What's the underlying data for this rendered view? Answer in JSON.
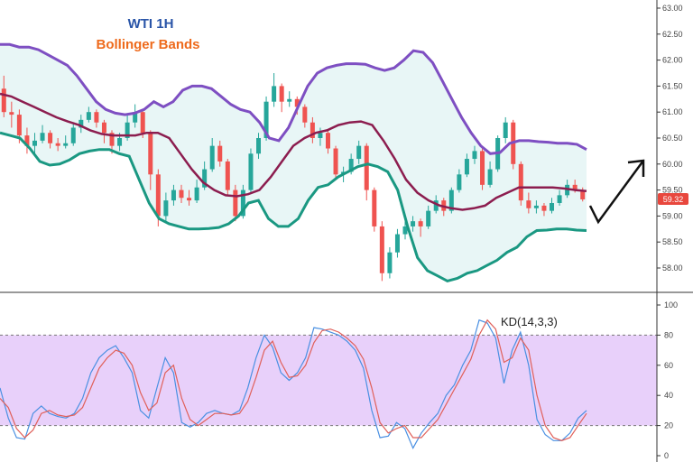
{
  "chart_data": [
    {
      "type": "candlestick",
      "title": "WTI 1H",
      "subtitle": "Bollinger Bands",
      "ylim": [
        57.6,
        63.1
      ],
      "yticks": [
        "63.00",
        "62.50",
        "62.00",
        "61.50",
        "61.00",
        "60.50",
        "60.00",
        "59.50",
        "59.00",
        "58.50",
        "58.00"
      ],
      "ytick_values": [
        63.0,
        62.5,
        62.0,
        61.5,
        61.0,
        60.5,
        60.0,
        59.5,
        59.0,
        58.5,
        58.0
      ],
      "last_price": "59.32",
      "last_price_value": 59.32,
      "candles": [
        [
          61.45,
          61.0,
          61.7,
          60.9
        ],
        [
          61.0,
          60.95,
          61.2,
          60.7
        ],
        [
          60.95,
          60.55,
          61.05,
          60.4
        ],
        [
          60.55,
          60.35,
          60.7,
          60.2
        ],
        [
          60.35,
          60.45,
          60.6,
          60.2
        ],
        [
          60.45,
          60.6,
          60.75,
          60.4
        ],
        [
          60.6,
          60.4,
          60.65,
          60.3
        ],
        [
          60.4,
          60.35,
          60.5,
          60.25
        ],
        [
          60.35,
          60.4,
          60.55,
          60.3
        ],
        [
          60.4,
          60.7,
          60.8,
          60.35
        ],
        [
          60.7,
          60.85,
          60.95,
          60.6
        ],
        [
          60.85,
          61.0,
          61.1,
          60.8
        ],
        [
          61.0,
          60.8,
          61.05,
          60.7
        ],
        [
          60.8,
          60.6,
          60.85,
          60.4
        ],
        [
          60.6,
          60.35,
          60.65,
          60.2
        ],
        [
          60.35,
          60.5,
          60.6,
          60.25
        ],
        [
          60.5,
          60.8,
          60.95,
          60.45
        ],
        [
          60.8,
          61.0,
          61.15,
          60.7
        ],
        [
          61.0,
          60.6,
          61.05,
          60.5
        ],
        [
          60.6,
          59.8,
          60.65,
          59.5
        ],
        [
          59.8,
          59.0,
          59.9,
          58.8
        ],
        [
          59.0,
          59.3,
          59.45,
          58.9
        ],
        [
          59.3,
          59.5,
          59.6,
          59.2
        ],
        [
          59.5,
          59.35,
          59.6,
          59.25
        ],
        [
          59.35,
          59.3,
          59.5,
          59.2
        ],
        [
          59.3,
          59.55,
          59.7,
          59.25
        ],
        [
          59.55,
          59.9,
          60.05,
          59.5
        ],
        [
          59.9,
          60.35,
          60.5,
          59.85
        ],
        [
          60.35,
          60.05,
          60.45,
          59.95
        ],
        [
          60.05,
          59.5,
          60.1,
          59.4
        ],
        [
          59.5,
          59.0,
          59.6,
          58.9
        ],
        [
          59.0,
          59.5,
          59.6,
          58.95
        ],
        [
          59.5,
          60.2,
          60.3,
          59.45
        ],
        [
          60.2,
          60.5,
          60.6,
          60.1
        ],
        [
          60.5,
          61.2,
          61.3,
          60.45
        ],
        [
          61.2,
          61.5,
          61.75,
          61.1
        ],
        [
          61.5,
          61.2,
          61.55,
          61.0
        ],
        [
          61.2,
          61.25,
          61.4,
          61.1
        ],
        [
          61.25,
          61.1,
          61.3,
          60.95
        ],
        [
          61.1,
          60.8,
          61.15,
          60.7
        ],
        [
          60.8,
          60.5,
          60.9,
          60.4
        ],
        [
          60.5,
          60.6,
          60.7,
          60.35
        ],
        [
          60.6,
          60.3,
          60.65,
          60.2
        ],
        [
          60.3,
          59.8,
          60.35,
          59.7
        ],
        [
          59.8,
          59.85,
          59.95,
          59.65
        ],
        [
          59.85,
          60.1,
          60.2,
          59.8
        ],
        [
          60.1,
          60.35,
          60.45,
          60.0
        ],
        [
          60.35,
          59.5,
          60.4,
          59.3
        ],
        [
          59.5,
          58.8,
          59.55,
          58.7
        ],
        [
          58.8,
          57.9,
          58.9,
          57.75
        ],
        [
          57.9,
          58.3,
          58.4,
          57.8
        ],
        [
          58.3,
          58.65,
          58.75,
          58.2
        ],
        [
          58.65,
          58.8,
          58.9,
          58.55
        ],
        [
          58.8,
          58.9,
          59.0,
          58.7
        ],
        [
          58.9,
          58.8,
          58.95,
          58.6
        ],
        [
          58.8,
          59.1,
          59.2,
          58.75
        ],
        [
          59.1,
          59.3,
          59.4,
          59.05
        ],
        [
          59.3,
          59.1,
          59.35,
          59.0
        ],
        [
          59.1,
          59.5,
          59.55,
          59.05
        ],
        [
          59.5,
          59.8,
          59.9,
          59.45
        ],
        [
          59.8,
          60.1,
          60.2,
          59.75
        ],
        [
          60.1,
          60.25,
          60.35,
          60.0
        ],
        [
          60.25,
          59.6,
          60.3,
          59.5
        ],
        [
          59.6,
          59.9,
          60.05,
          59.55
        ],
        [
          59.9,
          60.5,
          60.55,
          59.85
        ],
        [
          60.5,
          60.8,
          60.9,
          60.4
        ],
        [
          60.8,
          60.0,
          60.85,
          59.9
        ],
        [
          60.0,
          59.3,
          60.05,
          59.2
        ],
        [
          59.3,
          59.15,
          59.45,
          59.05
        ],
        [
          59.15,
          59.2,
          59.3,
          59.05
        ],
        [
          59.2,
          59.1,
          59.25,
          59.0
        ],
        [
          59.1,
          59.25,
          59.35,
          59.05
        ],
        [
          59.25,
          59.4,
          59.5,
          59.2
        ],
        [
          59.4,
          59.6,
          59.7,
          59.35
        ],
        [
          59.6,
          59.5,
          59.7,
          59.45
        ],
        [
          59.5,
          59.32,
          59.55,
          59.28
        ]
      ],
      "upper_band": [
        62.3,
        62.3,
        62.25,
        62.25,
        62.2,
        62.1,
        62.0,
        61.9,
        61.7,
        61.45,
        61.2,
        61.05,
        60.98,
        60.95,
        60.98,
        61.05,
        61.2,
        61.1,
        61.2,
        61.42,
        61.5,
        61.5,
        61.45,
        61.3,
        61.15,
        61.05,
        61.0,
        60.8,
        60.5,
        60.45,
        60.7,
        61.1,
        61.5,
        61.75,
        61.85,
        61.9,
        61.93,
        61.93,
        61.92,
        61.85,
        61.8,
        61.85,
        62.0,
        62.18,
        62.15,
        61.95,
        61.6,
        61.25,
        60.9,
        60.6,
        60.35,
        60.2,
        60.22,
        60.4,
        60.45,
        60.45,
        60.43,
        60.42,
        60.4,
        60.4,
        60.38,
        60.28
      ],
      "middle_band": [
        61.35,
        61.3,
        61.2,
        61.1,
        61.0,
        60.9,
        60.82,
        60.75,
        60.65,
        60.58,
        60.55,
        60.55,
        60.55,
        60.6,
        60.6,
        60.5,
        60.2,
        59.9,
        59.65,
        59.5,
        59.4,
        59.38,
        59.42,
        59.5,
        59.75,
        60.05,
        60.35,
        60.5,
        60.6,
        60.65,
        60.75,
        60.8,
        60.82,
        60.75,
        60.45,
        60.1,
        59.7,
        59.45,
        59.3,
        59.2,
        59.15,
        59.12,
        59.15,
        59.2,
        59.35,
        59.45,
        59.55,
        59.55,
        59.55,
        59.55,
        59.53,
        59.5,
        59.48
      ],
      "lower_band": [
        60.6,
        60.55,
        60.5,
        60.3,
        60.05,
        59.98,
        60.0,
        60.08,
        60.2,
        60.25,
        60.28,
        60.28,
        60.2,
        60.15,
        59.7,
        59.25,
        58.95,
        58.85,
        58.8,
        58.75,
        58.75,
        58.76,
        58.78,
        58.85,
        59.0,
        59.25,
        59.3,
        58.95,
        58.8,
        58.8,
        58.95,
        59.3,
        59.55,
        59.6,
        59.75,
        59.85,
        59.95,
        60.0,
        59.95,
        59.85,
        59.5,
        58.8,
        58.2,
        57.95,
        57.85,
        57.75,
        57.8,
        57.9,
        57.95,
        58.05,
        58.15,
        58.3,
        58.4,
        58.6,
        58.72,
        58.73,
        58.75,
        58.75,
        58.73,
        58.72
      ]
    },
    {
      "type": "line",
      "title": "KD(14,3,3)",
      "ylim": [
        0,
        100
      ],
      "yticks": [
        "100",
        "80",
        "60",
        "40",
        "20",
        "0"
      ],
      "ytick_values": [
        100,
        80,
        60,
        40,
        20,
        0
      ],
      "band": [
        20,
        80
      ],
      "series": [
        {
          "color": "#4a90e2",
          "values": [
            45,
            25,
            12,
            11,
            28,
            33,
            28,
            26,
            25,
            28,
            38,
            55,
            65,
            70,
            73,
            65,
            55,
            30,
            25,
            45,
            65,
            55,
            22,
            19,
            22,
            28,
            30,
            28,
            27,
            30,
            45,
            65,
            80,
            72,
            55,
            50,
            55,
            65,
            85,
            84,
            82,
            80,
            76,
            70,
            58,
            30,
            12,
            13,
            22,
            18,
            5,
            15,
            22,
            28,
            40,
            47,
            60,
            70,
            90,
            88,
            78,
            48,
            70,
            82,
            60,
            24,
            14,
            10,
            10,
            15,
            25,
            30
          ]
        },
        {
          "color": "#e0605a",
          "values": [
            38,
            32,
            18,
            12,
            17,
            28,
            30,
            27,
            26,
            27,
            32,
            45,
            58,
            65,
            70,
            68,
            60,
            42,
            30,
            35,
            55,
            60,
            38,
            24,
            20,
            24,
            28,
            28,
            27,
            28,
            36,
            52,
            70,
            76,
            62,
            52,
            53,
            60,
            75,
            83,
            84,
            82,
            78,
            73,
            64,
            45,
            22,
            15,
            18,
            20,
            12,
            12,
            18,
            24,
            34,
            44,
            54,
            64,
            80,
            90,
            84,
            62,
            65,
            78,
            70,
            40,
            20,
            12,
            10,
            12,
            20,
            28
          ]
        }
      ]
    }
  ]
}
